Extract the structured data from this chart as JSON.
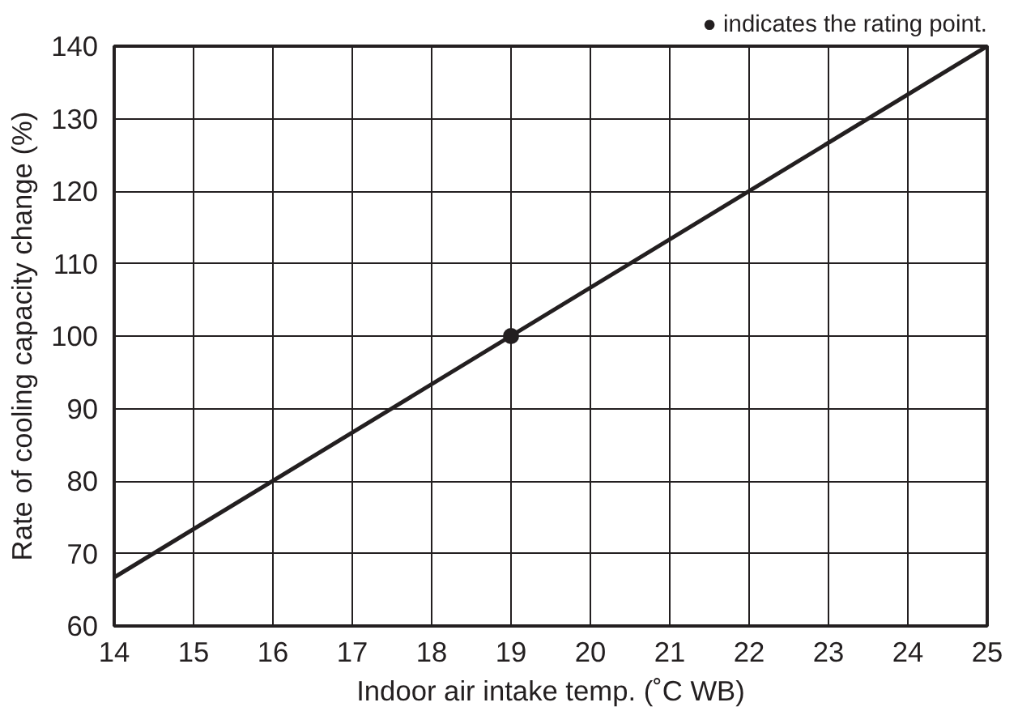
{
  "chart_data": {
    "type": "line",
    "xlabel": "Indoor air intake temp. (˚C WB)",
    "ylabel": "Rate of cooling capacity change (%)",
    "annotations": [
      "● indicates the rating point."
    ],
    "series": [
      {
        "color": "#231f20",
        "x": [
          14,
          25
        ],
        "values": [
          66.7,
          140
        ]
      },
      {
        "type": "scatter",
        "color": "#231f20",
        "x": [
          19
        ],
        "values": [
          100
        ],
        "marker": "circle"
      }
    ],
    "xlim": [
      14,
      25
    ],
    "ylim": [
      60,
      140
    ],
    "xticks": [
      14,
      15,
      16,
      17,
      18,
      19,
      20,
      21,
      22,
      23,
      24,
      25
    ],
    "yticks": [
      60,
      70,
      80,
      90,
      100,
      110,
      120,
      130,
      140
    ],
    "grid": true,
    "marker": "none",
    "line_style": "solid"
  }
}
